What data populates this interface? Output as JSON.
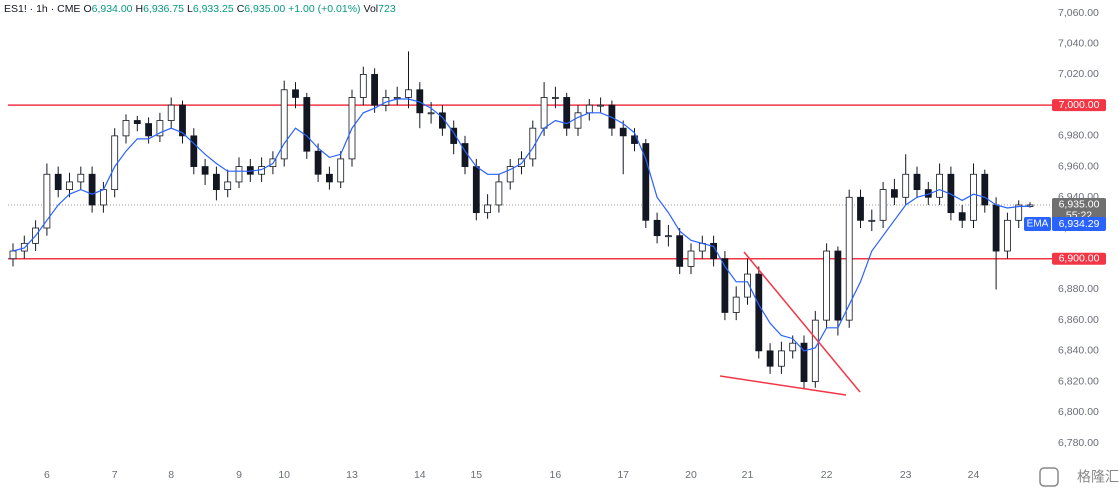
{
  "chart_data": {
    "type": "candlestick",
    "header": {
      "symbol": "ES1! · 1h · CME",
      "fields": [
        {
          "label": "O",
          "value": "6,934.00"
        },
        {
          "label": "H",
          "value": "6,936.75"
        },
        {
          "label": "L",
          "value": "6,933.25"
        },
        {
          "label": "C",
          "value": "6,935.00"
        }
      ],
      "change": "+1.00 (+0.01%)",
      "volume_label": "Vol",
      "volume": "723"
    },
    "categories": [
      null,
      null,
      null,
      "6",
      null,
      null,
      null,
      null,
      null,
      "7",
      null,
      null,
      null,
      null,
      "8",
      null,
      null,
      null,
      null,
      null,
      "9",
      null,
      null,
      null,
      "10",
      null,
      null,
      null,
      null,
      null,
      "13",
      null,
      null,
      null,
      null,
      null,
      "14",
      null,
      null,
      null,
      null,
      "15",
      null,
      null,
      null,
      null,
      null,
      null,
      "16",
      null,
      null,
      null,
      null,
      null,
      "17",
      null,
      null,
      null,
      null,
      null,
      "20",
      null,
      null,
      null,
      null,
      "21",
      null,
      null,
      null,
      null,
      null,
      null,
      "22",
      null,
      null,
      null,
      null,
      null,
      null,
      "23",
      null,
      null,
      null,
      null,
      null,
      "24",
      null,
      null,
      null,
      null,
      null
    ],
    "open": [
      6900,
      6905,
      6910,
      6920,
      6955,
      6945,
      6950,
      6955,
      6935,
      6945,
      6980,
      6990,
      6988,
      6980,
      6990,
      7000,
      6980,
      6960,
      6955,
      6945,
      6950,
      6960,
      6955,
      6960,
      6965,
      7010,
      7005,
      6970,
      6955,
      6950,
      6965,
      7005,
      7020,
      7000,
      7005,
      7005,
      7010,
      6995,
      6995,
      6985,
      6975,
      6960,
      6930,
      6935,
      6950,
      6960,
      6965,
      6985,
      7005,
      7005,
      6985,
      6995,
      7000,
      7000,
      6985,
      6980,
      6975,
      6925,
      6915,
      6915,
      6895,
      6905,
      6910,
      6900,
      6865,
      6875,
      6890,
      6840,
      6830,
      6840,
      6845,
      6820,
      6860,
      6905,
      6860,
      6940,
      6925,
      6925,
      6945,
      6940,
      6955,
      6945,
      6940,
      6955,
      6930,
      6925,
      6955,
      6935,
      6905,
      6925,
      6934
    ],
    "high": [
      6910,
      6915,
      6925,
      6962,
      6960,
      6956,
      6960,
      6960,
      6950,
      6985,
      6994,
      6993,
      6992,
      6995,
      7005,
      7003,
      6985,
      6965,
      6960,
      6958,
      6966,
      6965,
      6966,
      6970,
      7016,
      7015,
      7008,
      6975,
      6960,
      6970,
      7010,
      7025,
      7024,
      7010,
      7012,
      7035,
      7015,
      7002,
      7000,
      6990,
      6980,
      6965,
      6942,
      6955,
      6965,
      6970,
      6990,
      7015,
      7012,
      7008,
      7000,
      7004,
      7005,
      7003,
      6990,
      6985,
      6978,
      6930,
      6922,
      6920,
      6910,
      6915,
      6915,
      6905,
      6882,
      6900,
      6895,
      6845,
      6846,
      6850,
      6850,
      6866,
      6910,
      6908,
      6945,
      6945,
      6932,
      6950,
      6952,
      6968,
      6960,
      6950,
      6962,
      6960,
      6935,
      6962,
      6958,
      6940,
      6930,
      6938,
      6936.75
    ],
    "low": [
      6895,
      6900,
      6905,
      6915,
      6940,
      6940,
      6945,
      6930,
      6930,
      6940,
      6975,
      6983,
      6975,
      6976,
      6985,
      6975,
      6955,
      6948,
      6938,
      6940,
      6946,
      6950,
      6950,
      6955,
      6960,
      6998,
      6965,
      6950,
      6945,
      6946,
      6960,
      7000,
      6995,
      6996,
      7000,
      6998,
      6985,
      6988,
      6980,
      6968,
      6955,
      6925,
      6926,
      6930,
      6945,
      6955,
      6960,
      6980,
      6998,
      6980,
      6980,
      6990,
      6995,
      6980,
      6955,
      6970,
      6920,
      6910,
      6908,
      6890,
      6890,
      6900,
      6895,
      6860,
      6860,
      6870,
      6835,
      6825,
      6825,
      6835,
      6815,
      6816,
      6855,
      6850,
      6855,
      6920,
      6918,
      6920,
      6935,
      6935,
      6940,
      6935,
      6935,
      6925,
      6920,
      6920,
      6930,
      6880,
      6900,
      6920,
      6933.25
    ],
    "close": [
      6905,
      6910,
      6920,
      6955,
      6945,
      6950,
      6955,
      6935,
      6945,
      6980,
      6990,
      6988,
      6980,
      6990,
      7000,
      6980,
      6960,
      6955,
      6945,
      6950,
      6960,
      6955,
      6960,
      6965,
      7010,
      7005,
      6970,
      6955,
      6950,
      6965,
      7005,
      7020,
      7000,
      7005,
      7005,
      7010,
      6995,
      6995,
      6985,
      6975,
      6960,
      6930,
      6935,
      6950,
      6960,
      6965,
      6985,
      7005,
      7005,
      6985,
      6995,
      7000,
      7000,
      6985,
      6980,
      6975,
      6925,
      6915,
      6915,
      6895,
      6905,
      6910,
      6900,
      6865,
      6875,
      6890,
      6840,
      6830,
      6840,
      6845,
      6820,
      6860,
      6905,
      6860,
      6940,
      6925,
      6925,
      6945,
      6940,
      6955,
      6945,
      6940,
      6955,
      6930,
      6925,
      6955,
      6935,
      6905,
      6925,
      6935,
      6935
    ],
    "up_color": "#ffffff",
    "down_color": "#131722",
    "wick_color": "#131722",
    "ema": {
      "name": "EMA",
      "color": "#2962ff",
      "last_label": "6,934.29",
      "values": [
        6905,
        6907,
        6915,
        6925,
        6935,
        6942,
        6945,
        6942,
        6945,
        6960,
        6970,
        6978,
        6978,
        6982,
        6985,
        6982,
        6975,
        6968,
        6962,
        6957,
        6957,
        6957,
        6958,
        6962,
        6975,
        6985,
        6980,
        6972,
        6966,
        6968,
        6985,
        6995,
        6998,
        7002,
        7004,
        7004,
        7002,
        6998,
        6992,
        6982,
        6970,
        6960,
        6955,
        6955,
        6958,
        6962,
        6972,
        6985,
        6990,
        6988,
        6992,
        6995,
        6995,
        6992,
        6988,
        6982,
        6965,
        6940,
        6930,
        6918,
        6912,
        6910,
        6908,
        6895,
        6885,
        6885,
        6870,
        6858,
        6850,
        6848,
        6840,
        6842,
        6855,
        6855,
        6870,
        6885,
        6905,
        6915,
        6925,
        6935,
        6940,
        6942,
        6945,
        6942,
        6938,
        6942,
        6940,
        6935,
        6933,
        6934,
        6934.29
      ]
    },
    "hlines": [
      {
        "value": 7000,
        "label": "7,000.00",
        "color": "#f23645"
      },
      {
        "value": 6900,
        "label": "6,900.00",
        "color": "#f23645"
      }
    ],
    "last_price": {
      "value": 6935,
      "label": "6,935.00",
      "countdown": "55:22",
      "color": "#707070"
    },
    "ylim": [
      6780,
      7060
    ],
    "yticks": [
      {
        "value": 6780,
        "label": "6,780.00"
      },
      {
        "value": 6800,
        "label": "6,800.00"
      },
      {
        "value": 6820,
        "label": "6,820.00"
      },
      {
        "value": 6840,
        "label": "6,840.00"
      },
      {
        "value": 6860,
        "label": "6,860.00"
      },
      {
        "value": 6880,
        "label": "6,880.00"
      },
      {
        "value": 6900,
        "label": "6,900.00"
      },
      {
        "value": 6920,
        "label": "6,920.00"
      },
      {
        "value": 6940,
        "label": "6,940.00"
      },
      {
        "value": 6960,
        "label": "6,960.00"
      },
      {
        "value": 6980,
        "label": "6,980.00"
      },
      {
        "value": 7000,
        "label": "7,000.00"
      },
      {
        "value": 7020,
        "label": "7,020.00"
      },
      {
        "value": 7040,
        "label": "7,040.00"
      },
      {
        "value": 7060,
        "label": "7,060.00"
      }
    ],
    "grid": false,
    "watermark": "格隆汇"
  }
}
